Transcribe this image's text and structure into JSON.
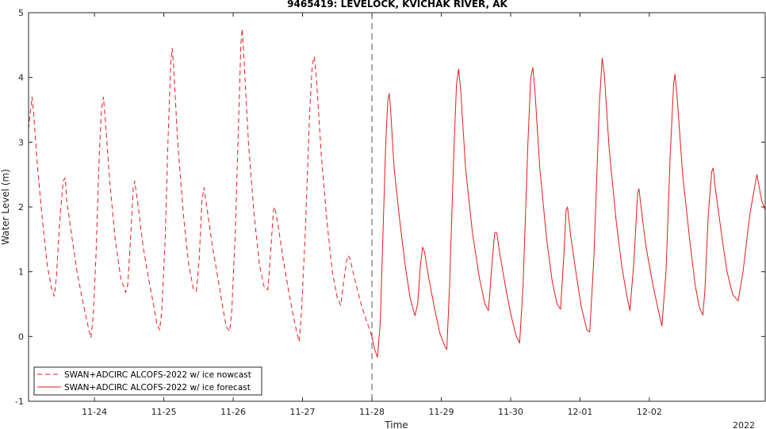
{
  "chart_data": {
    "type": "line",
    "title": "9465419: LEVELOCK, KVICHAK RIVER, AK",
    "xlabel": "Time",
    "ylabel": "Water Level (m)",
    "year_label": "2022",
    "x_unit": "day of November 2022 (24.0 = 11-24 00:00)",
    "xlim": [
      23.05,
      33.67
    ],
    "ylim": [
      -1,
      5
    ],
    "yticks": [
      -1,
      0,
      1,
      2,
      3,
      4,
      5
    ],
    "xticks": [
      {
        "x": 24,
        "label": "11-24"
      },
      {
        "x": 25,
        "label": "11-25"
      },
      {
        "x": 26,
        "label": "11-26"
      },
      {
        "x": 27,
        "label": "11-27"
      },
      {
        "x": 28,
        "label": "11-28"
      },
      {
        "x": 29,
        "label": "11-29"
      },
      {
        "x": 30,
        "label": "11-30"
      },
      {
        "x": 31,
        "label": "12-01"
      },
      {
        "x": 32,
        "label": "12-02"
      }
    ],
    "divider_x": 28.0,
    "grid": false,
    "legend_position": "bottom-left",
    "series": [
      {
        "name": "SWAN+ADCIRC ALCOFS-2022 w/ ice nowcast",
        "style": "dashed",
        "color": "#e8191c",
        "points": [
          [
            23.05,
            3.2
          ],
          [
            23.08,
            3.5
          ],
          [
            23.1,
            3.7
          ],
          [
            23.12,
            3.5
          ],
          [
            23.18,
            2.6
          ],
          [
            23.25,
            1.8
          ],
          [
            23.32,
            1.1
          ],
          [
            23.38,
            0.75
          ],
          [
            23.42,
            0.62
          ],
          [
            23.45,
            0.9
          ],
          [
            23.5,
            1.8
          ],
          [
            23.55,
            2.4
          ],
          [
            23.58,
            2.45
          ],
          [
            23.6,
            2.1
          ],
          [
            23.68,
            1.5
          ],
          [
            23.75,
            1.0
          ],
          [
            23.82,
            0.6
          ],
          [
            23.88,
            0.3
          ],
          [
            23.92,
            0.1
          ],
          [
            23.95,
            -0.02
          ],
          [
            23.98,
            0.3
          ],
          [
            24.02,
            1.2
          ],
          [
            24.07,
            2.8
          ],
          [
            24.1,
            3.5
          ],
          [
            24.13,
            3.7
          ],
          [
            24.16,
            3.3
          ],
          [
            24.22,
            2.4
          ],
          [
            24.3,
            1.5
          ],
          [
            24.38,
            0.9
          ],
          [
            24.45,
            0.68
          ],
          [
            24.48,
            0.8
          ],
          [
            24.52,
            1.5
          ],
          [
            24.56,
            2.3
          ],
          [
            24.58,
            2.4
          ],
          [
            24.62,
            2.1
          ],
          [
            24.7,
            1.4
          ],
          [
            24.78,
            0.9
          ],
          [
            24.85,
            0.5
          ],
          [
            24.9,
            0.2
          ],
          [
            24.94,
            0.1
          ],
          [
            24.97,
            0.4
          ],
          [
            25.02,
            1.5
          ],
          [
            25.06,
            3.0
          ],
          [
            25.1,
            4.2
          ],
          [
            25.12,
            4.45
          ],
          [
            25.14,
            4.2
          ],
          [
            25.2,
            3.0
          ],
          [
            25.28,
            1.9
          ],
          [
            25.36,
            1.1
          ],
          [
            25.43,
            0.72
          ],
          [
            25.47,
            0.7
          ],
          [
            25.51,
            1.2
          ],
          [
            25.55,
            2.1
          ],
          [
            25.58,
            2.3
          ],
          [
            25.62,
            2.0
          ],
          [
            25.7,
            1.4
          ],
          [
            25.78,
            0.9
          ],
          [
            25.85,
            0.45
          ],
          [
            25.9,
            0.15
          ],
          [
            25.95,
            0.08
          ],
          [
            25.98,
            0.4
          ],
          [
            26.03,
            1.6
          ],
          [
            26.08,
            3.4
          ],
          [
            26.11,
            4.5
          ],
          [
            26.13,
            4.75
          ],
          [
            26.15,
            4.4
          ],
          [
            26.22,
            3.0
          ],
          [
            26.3,
            1.9
          ],
          [
            26.38,
            1.1
          ],
          [
            26.45,
            0.75
          ],
          [
            26.5,
            0.72
          ],
          [
            26.54,
            1.3
          ],
          [
            26.58,
            1.95
          ],
          [
            26.6,
            2.0
          ],
          [
            26.65,
            1.7
          ],
          [
            26.72,
            1.2
          ],
          [
            26.8,
            0.7
          ],
          [
            26.87,
            0.3
          ],
          [
            26.92,
            0.05
          ],
          [
            26.95,
            -0.08
          ],
          [
            26.98,
            0.3
          ],
          [
            27.04,
            1.6
          ],
          [
            27.1,
            3.4
          ],
          [
            27.14,
            4.2
          ],
          [
            27.17,
            4.32
          ],
          [
            27.2,
            4.0
          ],
          [
            27.27,
            2.8
          ],
          [
            27.35,
            1.8
          ],
          [
            27.43,
            1.0
          ],
          [
            27.5,
            0.6
          ],
          [
            27.55,
            0.48
          ],
          [
            27.6,
            0.9
          ],
          [
            27.65,
            1.25
          ],
          [
            27.68,
            1.22
          ],
          [
            27.75,
            0.9
          ],
          [
            27.83,
            0.55
          ],
          [
            27.92,
            0.25
          ],
          [
            28.0,
            0.0
          ]
        ]
      },
      {
        "name": "SWAN+ADCIRC ALCOFS-2022 w/ ice forecast",
        "style": "solid",
        "color": "#e8191c",
        "points": [
          [
            28.0,
            0.0
          ],
          [
            28.04,
            -0.2
          ],
          [
            28.08,
            -0.32
          ],
          [
            28.12,
            0.2
          ],
          [
            28.16,
            1.6
          ],
          [
            28.2,
            3.0
          ],
          [
            28.23,
            3.65
          ],
          [
            28.25,
            3.75
          ],
          [
            28.27,
            3.5
          ],
          [
            28.32,
            2.6
          ],
          [
            28.4,
            1.8
          ],
          [
            28.48,
            1.1
          ],
          [
            28.55,
            0.6
          ],
          [
            28.62,
            0.32
          ],
          [
            28.66,
            0.5
          ],
          [
            28.7,
            1.1
          ],
          [
            28.73,
            1.38
          ],
          [
            28.76,
            1.3
          ],
          [
            28.82,
            0.9
          ],
          [
            28.9,
            0.45
          ],
          [
            28.98,
            0.05
          ],
          [
            29.05,
            -0.15
          ],
          [
            29.08,
            -0.2
          ],
          [
            29.12,
            0.8
          ],
          [
            29.18,
            2.8
          ],
          [
            29.22,
            3.9
          ],
          [
            29.25,
            4.13
          ],
          [
            29.28,
            3.8
          ],
          [
            29.35,
            2.6
          ],
          [
            29.45,
            1.6
          ],
          [
            29.55,
            0.9
          ],
          [
            29.63,
            0.5
          ],
          [
            29.68,
            0.4
          ],
          [
            29.73,
            1.1
          ],
          [
            29.77,
            1.6
          ],
          [
            29.8,
            1.6
          ],
          [
            29.84,
            1.3
          ],
          [
            29.92,
            0.8
          ],
          [
            30.0,
            0.35
          ],
          [
            30.08,
            0.0
          ],
          [
            30.13,
            -0.1
          ],
          [
            30.18,
            0.8
          ],
          [
            30.25,
            3.0
          ],
          [
            30.29,
            4.0
          ],
          [
            30.32,
            4.15
          ],
          [
            30.35,
            3.8
          ],
          [
            30.42,
            2.6
          ],
          [
            30.52,
            1.5
          ],
          [
            30.6,
            0.85
          ],
          [
            30.67,
            0.5
          ],
          [
            30.72,
            0.42
          ],
          [
            30.77,
            1.3
          ],
          [
            30.8,
            1.95
          ],
          [
            30.82,
            2.0
          ],
          [
            30.86,
            1.6
          ],
          [
            30.94,
            1.0
          ],
          [
            31.02,
            0.45
          ],
          [
            31.1,
            0.1
          ],
          [
            31.14,
            0.07
          ],
          [
            31.2,
            1.2
          ],
          [
            31.28,
            3.6
          ],
          [
            31.32,
            4.3
          ],
          [
            31.35,
            4.05
          ],
          [
            31.42,
            2.9
          ],
          [
            31.52,
            1.8
          ],
          [
            31.6,
            1.1
          ],
          [
            31.68,
            0.6
          ],
          [
            31.72,
            0.4
          ],
          [
            31.78,
            1.2
          ],
          [
            31.83,
            2.2
          ],
          [
            31.85,
            2.28
          ],
          [
            31.88,
            2.0
          ],
          [
            31.95,
            1.4
          ],
          [
            32.05,
            0.8
          ],
          [
            32.13,
            0.4
          ],
          [
            32.18,
            0.16
          ],
          [
            32.24,
            1.0
          ],
          [
            32.3,
            2.8
          ],
          [
            32.35,
            3.9
          ],
          [
            32.37,
            4.05
          ],
          [
            32.4,
            3.7
          ],
          [
            32.48,
            2.5
          ],
          [
            32.58,
            1.5
          ],
          [
            32.66,
            0.8
          ],
          [
            32.72,
            0.45
          ],
          [
            32.77,
            0.33
          ],
          [
            32.8,
            0.7
          ],
          [
            32.85,
            1.9
          ],
          [
            32.9,
            2.55
          ],
          [
            32.92,
            2.6
          ],
          [
            32.95,
            2.3
          ],
          [
            33.0,
            1.9
          ],
          [
            33.05,
            1.5
          ],
          [
            33.12,
            1.0
          ],
          [
            33.2,
            0.65
          ],
          [
            33.28,
            0.55
          ],
          [
            33.35,
            1.0
          ],
          [
            33.45,
            1.9
          ],
          [
            33.55,
            2.5
          ],
          [
            33.62,
            2.1
          ],
          [
            33.67,
            1.95
          ]
        ]
      }
    ]
  }
}
